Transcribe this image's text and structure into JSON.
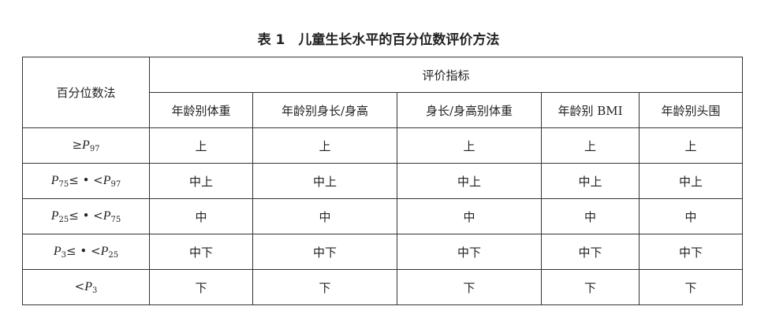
{
  "title": "表 1　儿童生长水平的百分位数评价方法",
  "header": {
    "method": "百分位数法",
    "group": "评价指标",
    "columns": [
      "年龄别体重",
      "年龄别身长/身高",
      "身长/身高别体重",
      "年龄别 BMI",
      "年龄别头围"
    ]
  },
  "rows": [
    {
      "label": [
        {
          "t": "≥"
        },
        {
          "t": "P",
          "i": true
        },
        {
          "t": "97",
          "sub": true
        }
      ],
      "values": [
        "上",
        "上",
        "上",
        "上",
        "上"
      ]
    },
    {
      "label": [
        {
          "t": "P",
          "i": true
        },
        {
          "t": "75",
          "sub": true
        },
        {
          "t": "≤ • <"
        },
        {
          "t": "P",
          "i": true
        },
        {
          "t": "97",
          "sub": true
        }
      ],
      "values": [
        "中上",
        "中上",
        "中上",
        "中上",
        "中上"
      ]
    },
    {
      "label": [
        {
          "t": "P",
          "i": true
        },
        {
          "t": "25",
          "sub": true
        },
        {
          "t": "≤ • <"
        },
        {
          "t": "P",
          "i": true
        },
        {
          "t": "75",
          "sub": true
        }
      ],
      "values": [
        "中",
        "中",
        "中",
        "中",
        "中"
      ]
    },
    {
      "label": [
        {
          "t": "P",
          "i": true
        },
        {
          "t": "3",
          "sub": true
        },
        {
          "t": "≤ • <"
        },
        {
          "t": "P",
          "i": true
        },
        {
          "t": "25",
          "sub": true
        }
      ],
      "values": [
        "中下",
        "中下",
        "中下",
        "中下",
        "中下"
      ]
    },
    {
      "label": [
        {
          "t": "<"
        },
        {
          "t": "P",
          "i": true
        },
        {
          "t": "3",
          "sub": true
        }
      ],
      "values": [
        "下",
        "下",
        "下",
        "下",
        "下"
      ]
    }
  ]
}
